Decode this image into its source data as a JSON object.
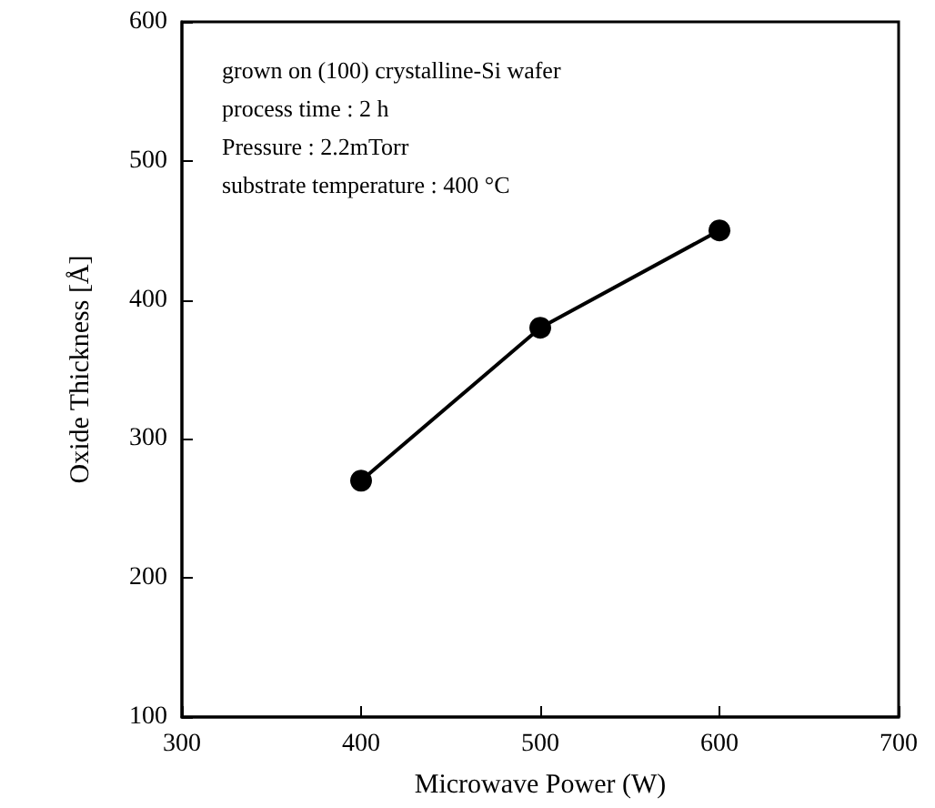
{
  "chart_data": {
    "type": "line",
    "xlabel": "Microwave Power (W)",
    "ylabel": "Oxide Thickness [Å]",
    "annotations": [
      "grown on (100) crystalline-Si wafer",
      "process time : 2 h",
      "Pressure : 2.2mTorr",
      "substrate temperature : 400 °C"
    ],
    "x": [
      400,
      500,
      600
    ],
    "series": [
      {
        "color": "#000000",
        "values": [
          270,
          380,
          450
        ]
      }
    ],
    "xlim": [
      300,
      700
    ],
    "xticks": [
      300,
      400,
      500,
      600,
      700
    ],
    "ylim": [
      100,
      600
    ],
    "yticks": [
      100,
      200,
      300,
      400,
      500,
      600
    ],
    "marker": "circle",
    "line_style": "solid"
  }
}
